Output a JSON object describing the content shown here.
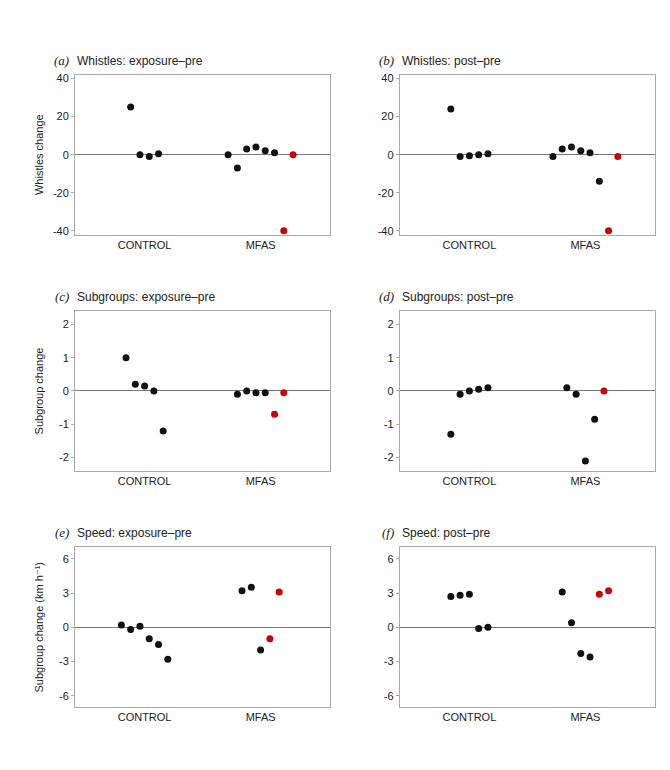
{
  "chart_data": [
    {
      "type": "scatter",
      "title": "Whistles: exposure–pre",
      "annotations": [
        "(a)"
      ],
      "ylabel": "Whistles change",
      "categories": [
        "CONTROL",
        "MFAS"
      ],
      "ylim": [
        -42,
        42
      ],
      "yticks": [
        -40,
        -20,
        0,
        20,
        40
      ],
      "grid": false,
      "series": [
        {
          "color": "#111111",
          "x": [
            "CONTROL",
            "CONTROL",
            "CONTROL",
            "CONTROL"
          ],
          "values": [
            25.0,
            0.0,
            -1.0,
            0.5
          ]
        },
        {
          "color": "#111111",
          "x": [
            "MFAS",
            "MFAS",
            "MFAS",
            "MFAS",
            "MFAS",
            "MFAS"
          ],
          "values": [
            0.0,
            -7.0,
            3.0,
            4.0,
            2.0,
            1.0
          ]
        },
        {
          "color": "#cc0000",
          "x": [
            "MFAS",
            "MFAS"
          ],
          "values": [
            -40.0,
            0.0
          ]
        }
      ]
    },
    {
      "type": "scatter",
      "title": "Whistles: post–pre",
      "annotations": [
        "(b)"
      ],
      "categories": [
        "CONTROL",
        "MFAS"
      ],
      "ylim": [
        -42,
        42
      ],
      "yticks": [
        -40,
        -20,
        0,
        20,
        40
      ],
      "grid": false,
      "series": [
        {
          "color": "#111111",
          "x": [
            "CONTROL",
            "CONTROL",
            "CONTROL",
            "CONTROL",
            "CONTROL"
          ],
          "values": [
            24.0,
            -1.0,
            -0.5,
            0.0,
            0.5
          ]
        },
        {
          "color": "#111111",
          "x": [
            "MFAS",
            "MFAS",
            "MFAS",
            "MFAS",
            "MFAS",
            "MFAS"
          ],
          "values": [
            -1.0,
            3.0,
            4.0,
            2.0,
            1.0,
            -14.0
          ]
        },
        {
          "color": "#cc0000",
          "x": [
            "MFAS",
            "MFAS"
          ],
          "values": [
            -40.0,
            -1.0
          ]
        }
      ]
    },
    {
      "type": "scatter",
      "title": "Subgroups: exposure–pre",
      "annotations": [
        "(c)"
      ],
      "ylabel": "Subgroup change",
      "categories": [
        "CONTROL",
        "MFAS"
      ],
      "ylim": [
        -2.4,
        2.4
      ],
      "yticks": [
        -2,
        -1,
        0,
        1,
        2
      ],
      "grid": false,
      "series": [
        {
          "color": "#111111",
          "x": [
            "CONTROL",
            "CONTROL",
            "CONTROL",
            "CONTROL",
            "CONTROL"
          ],
          "values": [
            1.0,
            0.2,
            0.15,
            0.0,
            -1.2
          ]
        },
        {
          "color": "#111111",
          "x": [
            "MFAS",
            "MFAS",
            "MFAS",
            "MFAS"
          ],
          "values": [
            -0.1,
            0.0,
            -0.05,
            -0.05
          ]
        },
        {
          "color": "#cc0000",
          "x": [
            "MFAS",
            "MFAS"
          ],
          "values": [
            -0.7,
            -0.05
          ]
        }
      ]
    },
    {
      "type": "scatter",
      "title": "Subgroups: post–pre",
      "annotations": [
        "(d)"
      ],
      "categories": [
        "CONTROL",
        "MFAS"
      ],
      "ylim": [
        -2.4,
        2.4
      ],
      "yticks": [
        -2,
        -1,
        0,
        1,
        2
      ],
      "grid": false,
      "series": [
        {
          "color": "#111111",
          "x": [
            "CONTROL",
            "CONTROL",
            "CONTROL",
            "CONTROL",
            "CONTROL"
          ],
          "values": [
            -1.3,
            -0.1,
            0.0,
            0.05,
            0.1
          ]
        },
        {
          "color": "#111111",
          "x": [
            "MFAS",
            "MFAS",
            "MFAS",
            "MFAS"
          ],
          "values": [
            0.1,
            -0.1,
            -2.1,
            -0.85
          ]
        },
        {
          "color": "#cc0000",
          "x": [
            "MFAS"
          ],
          "values": [
            0.0
          ]
        }
      ]
    },
    {
      "type": "scatter",
      "title": "Speed: exposure–pre",
      "annotations": [
        "(e)"
      ],
      "ylabel": "Subgroup change (km h⁻¹)",
      "categories": [
        "CONTROL",
        "MFAS"
      ],
      "ylim": [
        -7,
        7
      ],
      "yticks": [
        -6,
        -3,
        0,
        3,
        6
      ],
      "grid": false,
      "series": [
        {
          "color": "#111111",
          "x": [
            "CONTROL",
            "CONTROL",
            "CONTROL",
            "CONTROL",
            "CONTROL",
            "CONTROL"
          ],
          "values": [
            0.2,
            -0.2,
            0.1,
            -1.0,
            -1.5,
            -2.8
          ]
        },
        {
          "color": "#111111",
          "x": [
            "MFAS",
            "MFAS",
            "MFAS"
          ],
          "values": [
            3.2,
            3.5,
            -2.0
          ]
        },
        {
          "color": "#cc0000",
          "x": [
            "MFAS",
            "MFAS"
          ],
          "values": [
            -1.0,
            3.1
          ]
        }
      ]
    },
    {
      "type": "scatter",
      "title": "Speed: post–pre",
      "annotations": [
        "(f)"
      ],
      "categories": [
        "CONTROL",
        "MFAS"
      ],
      "ylim": [
        -7,
        7
      ],
      "yticks": [
        -6,
        -3,
        0,
        3,
        6
      ],
      "grid": false,
      "series": [
        {
          "color": "#111111",
          "x": [
            "CONTROL",
            "CONTROL",
            "CONTROL",
            "CONTROL",
            "CONTROL"
          ],
          "values": [
            2.7,
            2.8,
            2.9,
            -0.1,
            0.0
          ]
        },
        {
          "color": "#111111",
          "x": [
            "MFAS",
            "MFAS",
            "MFAS",
            "MFAS"
          ],
          "values": [
            3.1,
            0.4,
            -2.3,
            -2.6
          ]
        },
        {
          "color": "#cc0000",
          "x": [
            "MFAS",
            "MFAS"
          ],
          "values": [
            2.9,
            3.2
          ]
        }
      ]
    }
  ]
}
